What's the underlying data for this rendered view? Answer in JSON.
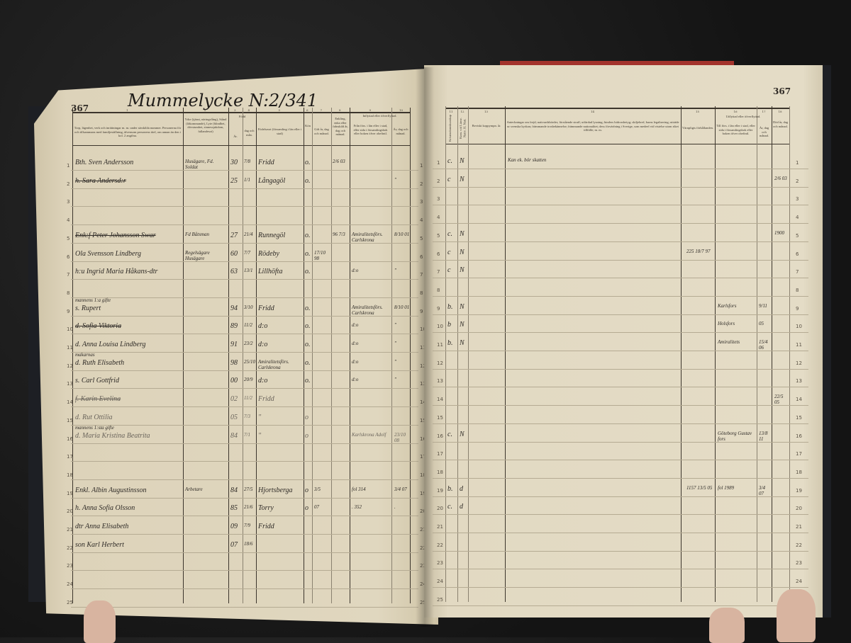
{
  "left_page": {
    "page_number": "367",
    "title": "Mummelycke N:2/341",
    "column_numbers": [
      "1",
      "2",
      "3",
      "4",
      "5",
      "6",
      "7",
      "8",
      "9",
      "10"
    ],
    "headers": {
      "c1": "Torp, lägenhet, verk och inrättningar m. m. under särskilda nummer. Personerna för och tillsammans med familjeställning, äfvensom personens titel, om annan än den i kol. 2 angifna.",
      "c2": "Yrke (tjänst, näringsfång), Stånd (fäkommande), Lyte (blindhet, dövstumhet, sinnessjukdom, fallandesot)",
      "c34": "Född",
      "c3": "År.",
      "c4": "dag och mån.",
      "c5": "Födelseort (församling i län eller i stad)",
      "c6": "Kön",
      "c7": "Gift år, dag och månad.",
      "c8": "Enkling, enka eller frånskild år, dag och månad.",
      "c9top": "Inflyttad eller öfverflyttad.",
      "c9": "Från förs. i län eller i stad, eller sida i församlingsbok eller boken öfver obefintl.",
      "c10": "År, dag och månad."
    },
    "entries": [
      {
        "row": 1,
        "name": "Bth. Sven Andersson",
        "occupation": "Husägare, Fd. Soldat",
        "year": "30",
        "date": "7/8",
        "birthplace": "Fridd",
        "c6": "o.",
        "widowed": "2/6 03"
      },
      {
        "row": 2,
        "name": "h. Sara Andersd:r",
        "struck": true,
        "year": "25",
        "date": "1/1",
        "birthplace": "Långagöl",
        "c6": "o.",
        "moved_date": "\""
      },
      {
        "row": 5,
        "name": "Enk:f Peter Johansson Swar",
        "struck": true,
        "occupation": "Fd Båtsman",
        "year": "27",
        "date": "21/4",
        "birthplace": "Runnegöl",
        "c6": "o.",
        "widowed": "96 7/3",
        "moved_from": "Amiralitetsförs. Carlskrona",
        "moved_date": "8/10 01"
      },
      {
        "row": 6,
        "name": "Ola Svensson Lindberg",
        "occupation": "Regelsägare Husägare",
        "year": "60",
        "date": "7/7",
        "birthplace": "Rödeby",
        "c6": "o.",
        "married": "17/10 98"
      },
      {
        "row": 7,
        "name": "h:u Ingrid Maria Håkans-dtr",
        "year": "63",
        "date": "13/1",
        "birthplace": "Lillhöfta",
        "c6": "o.",
        "moved_from": "d:o",
        "moved_date": "\""
      },
      {
        "row": 9,
        "note": "mannens 1:a gifte",
        "name": "s. Rupert",
        "year": "94",
        "date": "3/10",
        "birthplace": "Fridd",
        "c6": "o.",
        "moved_from": "Amiralitetsförs. Carlskrona",
        "moved_date": "8/10 01"
      },
      {
        "row": 10,
        "name": "d. Sofia Viktoria",
        "struck": true,
        "year": "89",
        "date": "11/2",
        "birthplace": "d:o",
        "c6": "o.",
        "moved_from": "d:o",
        "moved_date": "\""
      },
      {
        "row": 11,
        "name": "d. Anna Louisa Lindberg",
        "year": "91",
        "date": "23/2",
        "birthplace": "d:o",
        "c6": "o.",
        "moved_from": "d:o",
        "moved_date": "\""
      },
      {
        "row": 12,
        "note": "makarnas",
        "name": "d. Ruth Elisabeth",
        "year": "98",
        "date": "25/10",
        "birthplace": "Amiralitetsförs. Carlskrona",
        "c6": "o.",
        "moved_from": "d:o",
        "moved_date": "\""
      },
      {
        "row": 13,
        "name": "s. Carl Gottfrid",
        "year": "00",
        "date": "20/9",
        "birthplace": "d:o",
        "c6": "o.",
        "moved_from": "d:o",
        "moved_date": "\""
      },
      {
        "row": 14,
        "name": "f. Karin Evelina",
        "struck": true,
        "faint": true,
        "year": "02",
        "date": "11/2",
        "birthplace": "Fridd"
      },
      {
        "row": 15,
        "name": "d. Rut Ottilia",
        "faint": true,
        "year": "05",
        "date": "7/3",
        "birthplace": "\"",
        "c6": "o"
      },
      {
        "row": 16,
        "note": "mannens 1:sta gifte",
        "name": "d. Maria Kristina Beatrita",
        "faint": true,
        "year": "84",
        "date": "7/1",
        "birthplace": "\"",
        "c6": "o",
        "moved_from": "Karlskrona Adolf",
        "moved_date": "23/10 08"
      },
      {
        "row": 19,
        "name": "Enkl. Albin Augustinsson",
        "occupation": "Arbetare",
        "year": "84",
        "date": "27/5",
        "birthplace": "Hjortsberga",
        "c6": "o",
        "married": "3/5",
        "moved_from": "fol 314",
        "moved_date": "3/4 07"
      },
      {
        "row": 20,
        "name": "h. Anna Sofia Olsson",
        "year": "85",
        "date": "21/6",
        "birthplace": "Torry",
        "c6": "o",
        "married": "07",
        "moved_from": ". 352",
        "moved_date": "."
      },
      {
        "row": 21,
        "name": "dtr Anna Elisabeth",
        "year": "09",
        "date": "7/9",
        "birthplace": "Fridd"
      },
      {
        "row": 22,
        "name": "son Karl Herbert",
        "year": "07",
        "date": "18/6"
      }
    ]
  },
  "right_page": {
    "page_number": "367",
    "column_numbers": [
      "11",
      "12",
      "13",
      "14",
      "15",
      "16",
      "17",
      "18"
    ],
    "headers": {
      "c11": "Kristendomskunskap",
      "c12": "Kom. vid Lärov. Nattv. H. Natt.",
      "c13": "Beviskt koppympn. år.",
      "c14": "Anteckningar om frejd; nattvardsbörder; förstående straff; utfärdad lysning; hinders bidrorsbetyg; skiljebref; barns legalisering; utträde ur svenska kyrkan; främmande trosbekännelse; främmande nationalitet; dess förvärfning i Sverige, som medeel vid vistelse utom riket tillfälle; m. m.",
      "c15": "Värnpligts förhållanden.",
      "c1617top": "Utflyttad eller öfverflyttad.",
      "c16": "Till förs. i län eller i stad, eller sida i församlingsbok eller boken öfver obefintl.",
      "c17": "År, dag och månad.",
      "c18": "Död år, dag och månad."
    },
    "entries": [
      {
        "row": 1,
        "c11": "c.",
        "c12": "N",
        "c14": "Kan ek. bör skatten"
      },
      {
        "row": 2,
        "c11": "c",
        "c12": "N",
        "c18": "2/6 03"
      },
      {
        "row": 5,
        "c11": "c.",
        "c12": "N",
        "c18": "1900"
      },
      {
        "row": 6,
        "c11": "c",
        "c12": "N",
        "c15": "225 18/7 97"
      },
      {
        "row": 7,
        "c11": "c",
        "c12": "N"
      },
      {
        "row": 9,
        "c11": "b.",
        "c12": "N",
        "c16": "Karlsfors",
        "c17": "9/11"
      },
      {
        "row": 10,
        "c11": "b",
        "c12": "N",
        "c16": "Holsfors",
        "c17": "05"
      },
      {
        "row": 11,
        "c11": "b.",
        "c12": "N",
        "c16": "Amiralitets",
        "c17": "15/4 06"
      },
      {
        "row": 14,
        "c18": "22/5 05"
      },
      {
        "row": 16,
        "c11": "c.",
        "c12": "N",
        "c16": "Göteborg Gustav fors",
        "c17": "13/8 11"
      },
      {
        "row": 19,
        "c11": "b.",
        "c12": "d",
        "c15": "1157 13/5 05",
        "c16": "fol 1989",
        "c17": "3/4 07"
      },
      {
        "row": 20,
        "c11": "c.",
        "c12": "d"
      }
    ]
  },
  "row_count": 25
}
